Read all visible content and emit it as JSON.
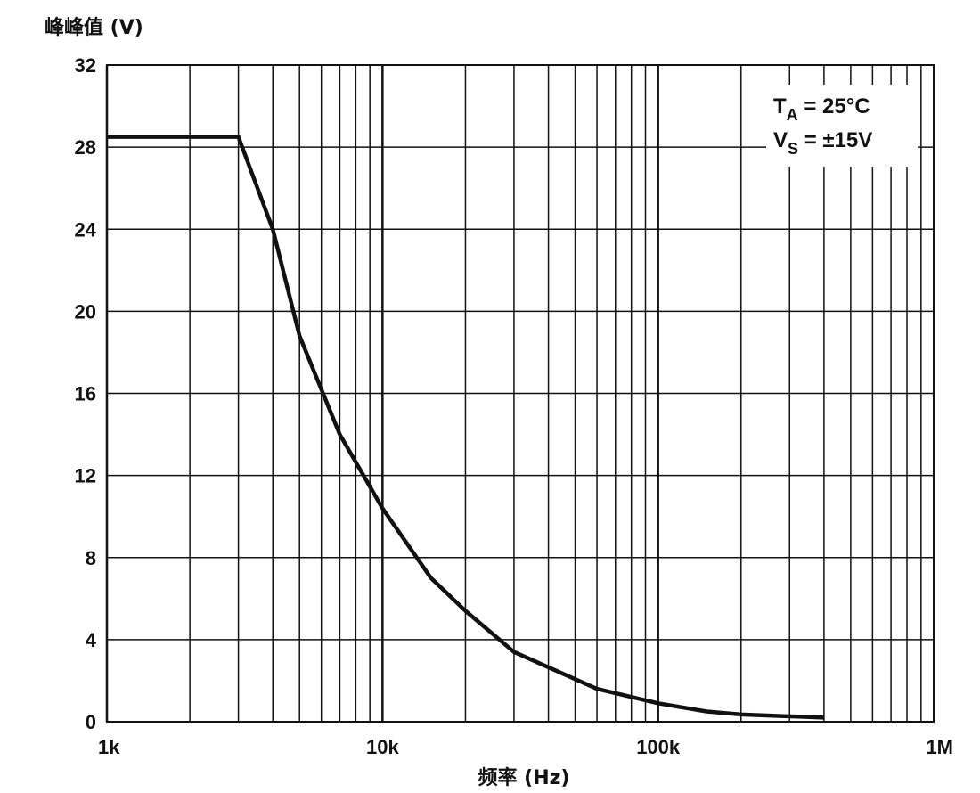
{
  "chart_data": {
    "type": "line",
    "ylabel": "峰峰值 (V)",
    "xlabel": "频率 (Hz)",
    "x_scale": "log",
    "xlim": [
      1000,
      1000000
    ],
    "ylim": [
      0,
      32
    ],
    "x_ticks": [
      {
        "value": 1000,
        "label": "1k"
      },
      {
        "value": 10000,
        "label": "10k"
      },
      {
        "value": 100000,
        "label": "100k"
      },
      {
        "value": 1000000,
        "label": "1M"
      }
    ],
    "y_ticks": [
      0,
      4,
      8,
      12,
      16,
      20,
      24,
      28,
      32
    ],
    "grid": true,
    "annotations": [
      {
        "main": "T",
        "sub": "A",
        "rest": " = 25°C"
      },
      {
        "main": "V",
        "sub": "S",
        "rest": " = ±15V"
      }
    ],
    "series": [
      {
        "color": "#111111",
        "x": [
          1000,
          3000,
          4000,
          5000,
          7000,
          10000,
          15000,
          20000,
          30000,
          60000,
          100000,
          150000,
          200000,
          400000
        ],
        "y": [
          28.5,
          28.5,
          24.0,
          18.8,
          14.0,
          10.4,
          7.0,
          5.4,
          3.4,
          1.6,
          0.9,
          0.5,
          0.35,
          0.2
        ]
      }
    ]
  }
}
